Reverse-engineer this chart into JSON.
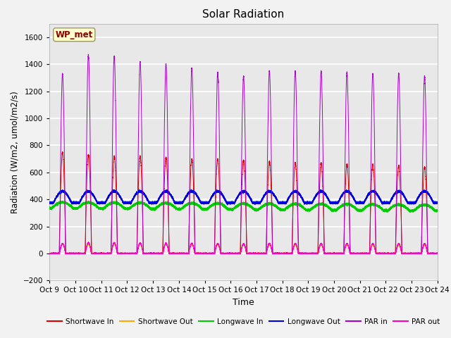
{
  "title": "Solar Radiation",
  "ylabel": "Radiation (W/m2, umol/m2/s)",
  "xlabel": "Time",
  "ylim": [
    -200,
    1700
  ],
  "yticks": [
    -200,
    0,
    200,
    400,
    600,
    800,
    1000,
    1200,
    1400,
    1600
  ],
  "plot_bg_color": "#e8e8e8",
  "fig_bg_color": "#f2f2f2",
  "grid_color": "#ffffff",
  "n_days": 15,
  "day_start": 9,
  "series": {
    "shortwave_in": {
      "color": "#dd0000",
      "label": "Shortwave In"
    },
    "shortwave_out": {
      "color": "#ffaa00",
      "label": "Shortwave Out"
    },
    "longwave_in": {
      "color": "#00cc00",
      "label": "Longwave In"
    },
    "longwave_out": {
      "color": "#0000dd",
      "label": "Longwave Out"
    },
    "par_in": {
      "color": "#aa00cc",
      "label": "PAR in"
    },
    "par_out": {
      "color": "#ff00bb",
      "label": "PAR out"
    }
  },
  "label_box": "WP_met",
  "label_box_facecolor": "#ffffcc",
  "label_box_edgecolor": "#999966",
  "label_box_text_color": "#880000",
  "sw_peaks": [
    750,
    730,
    720,
    720,
    710,
    700,
    700,
    690,
    680,
    670,
    670,
    660,
    660,
    650,
    640
  ],
  "par_in_peaks": [
    1330,
    1470,
    1460,
    1420,
    1400,
    1370,
    1340,
    1310,
    1350,
    1350,
    1350,
    1340,
    1330,
    1330,
    1310
  ],
  "lw_in_base": 335,
  "lw_in_bump": 45,
  "lw_out_base": 375,
  "lw_out_bump": 85
}
